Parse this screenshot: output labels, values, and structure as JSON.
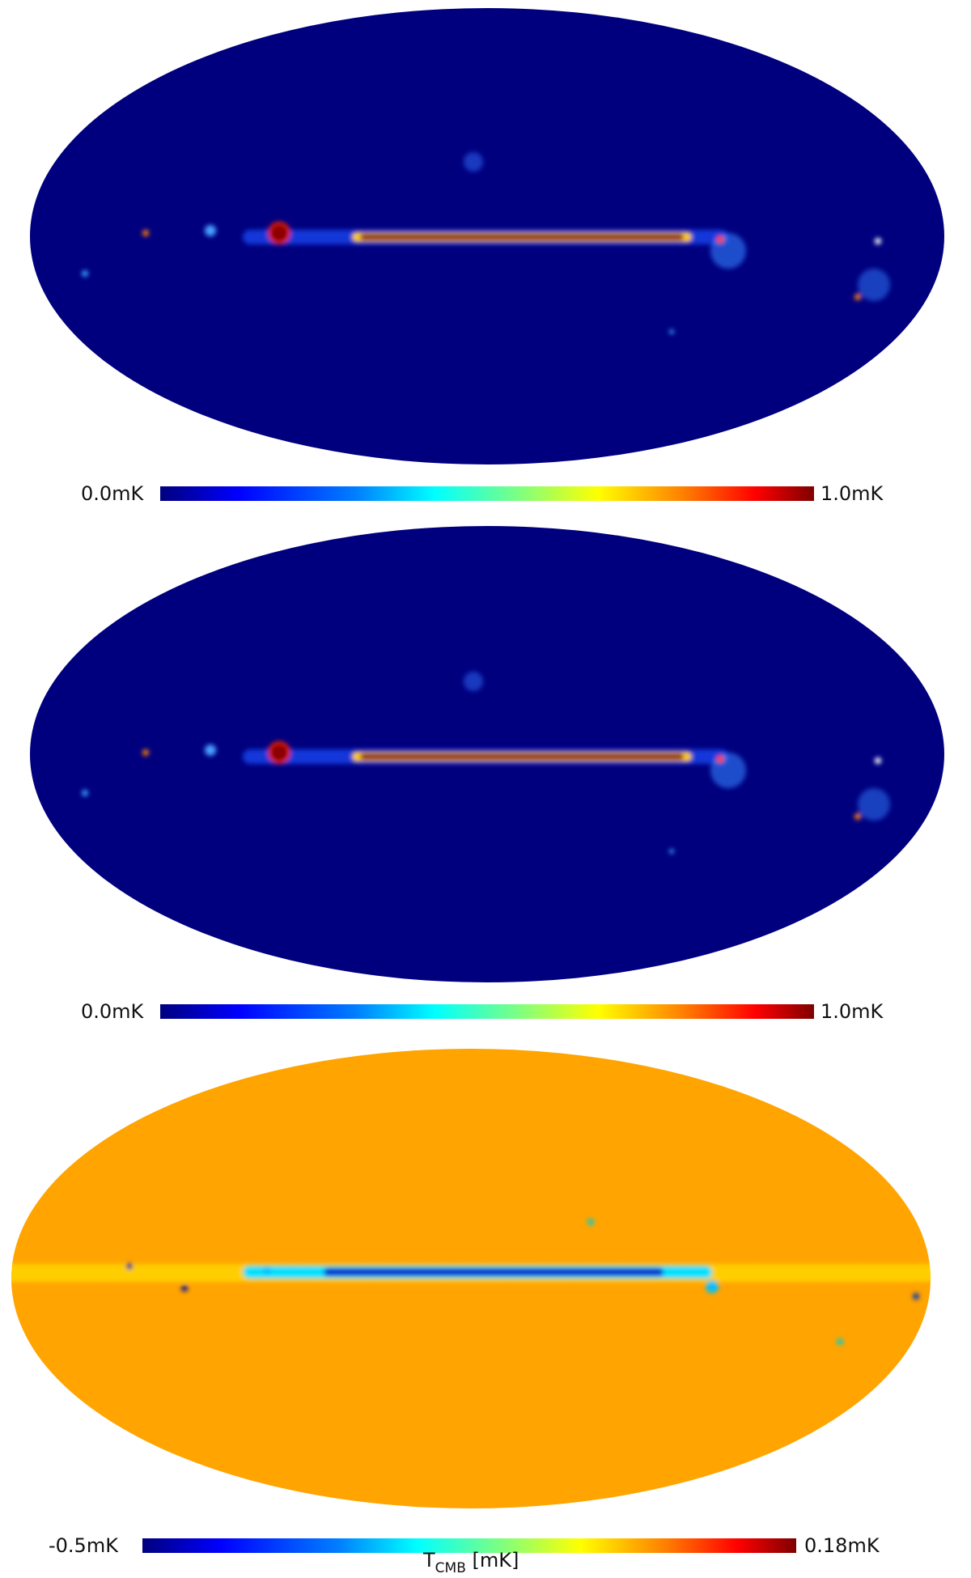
{
  "panels": [
    {
      "name": "top-map",
      "colorbar": {
        "min_label": "0.0mK",
        "max_label": "1.0mK"
      },
      "background_color": "#00007f",
      "band_color": "#7f0000"
    },
    {
      "name": "middle-map",
      "colorbar": {
        "min_label": "0.0mK",
        "max_label": "1.0mK"
      },
      "background_color": "#00007f",
      "band_color": "#7f0000"
    },
    {
      "name": "bottom-map",
      "colorbar": {
        "min_label": "-0.5mK",
        "max_label": "0.18mK"
      },
      "background_color": "#ffa500",
      "band_color": "#1010d0"
    }
  ],
  "colorbar_unit": {
    "symbol": "T",
    "subscript": "CMB",
    "unit": "[mK]"
  },
  "colormap": [
    "#00007f",
    "#0000ff",
    "#007fff",
    "#00ffff",
    "#7fff7f",
    "#ffff00",
    "#ff7f00",
    "#ff0000",
    "#7f0000"
  ]
}
